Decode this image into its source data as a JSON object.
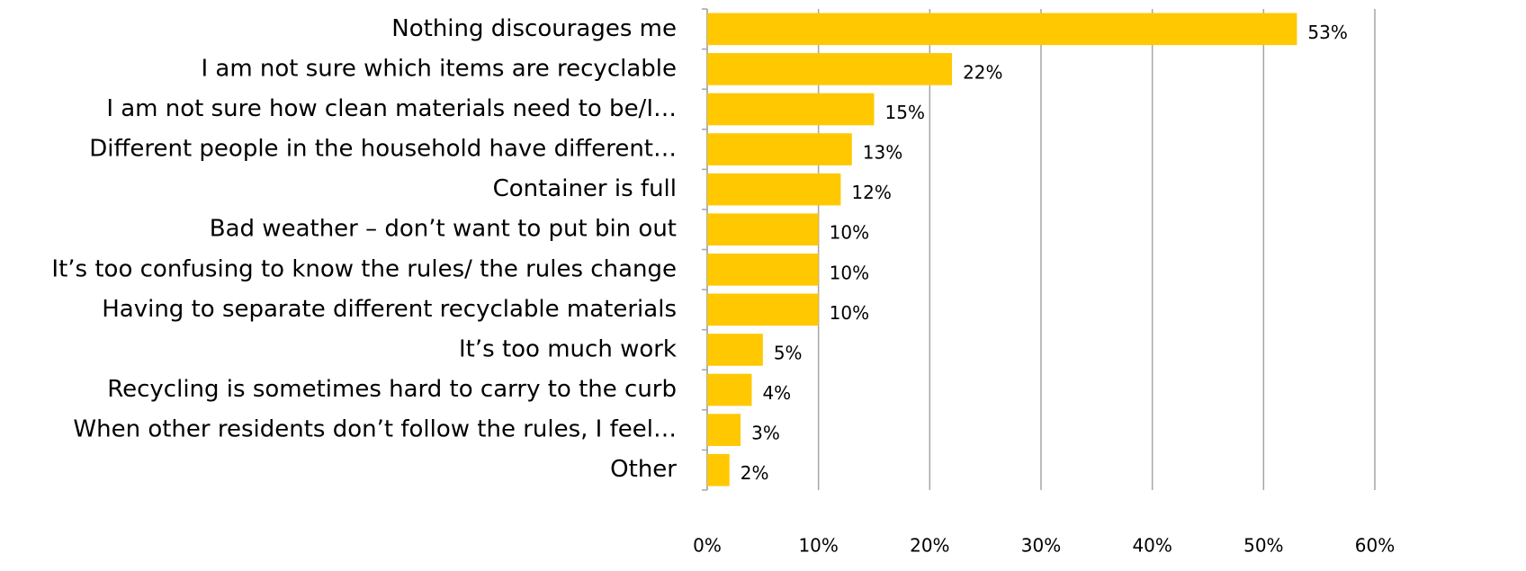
{
  "chart_data": {
    "type": "hbar",
    "categories": [
      "Nothing discourages me",
      "I am not sure which items are recyclable",
      "I am not sure how clean materials need to be/I…",
      "Different people in the household have different…",
      "Container is full",
      "Bad weather – don’t want to put bin out",
      "It’s too confusing to know the rules/ the rules change",
      "Having to separate different recyclable materials",
      "It’s too much work",
      "Recycling is sometimes hard to carry to the curb",
      "When other residents don’t follow the rules, I feel…",
      "Other"
    ],
    "values": [
      53,
      22,
      15,
      13,
      12,
      10,
      10,
      10,
      5,
      4,
      3,
      2
    ],
    "value_labels": [
      "53%",
      "22%",
      "15%",
      "13%",
      "12%",
      "10%",
      "10%",
      "10%",
      "5%",
      "4%",
      "3%",
      "2%"
    ],
    "color": "#ffc800",
    "xlim": [
      0,
      60
    ],
    "xticks": [
      {
        "value": 0,
        "label": "0%"
      },
      {
        "value": 10,
        "label": "10%"
      },
      {
        "value": 20,
        "label": "20%"
      },
      {
        "value": 30,
        "label": "30%"
      },
      {
        "value": 40,
        "label": "40%"
      },
      {
        "value": 50,
        "label": "50%"
      },
      {
        "value": 60,
        "label": "60%"
      }
    ],
    "grid": true
  }
}
